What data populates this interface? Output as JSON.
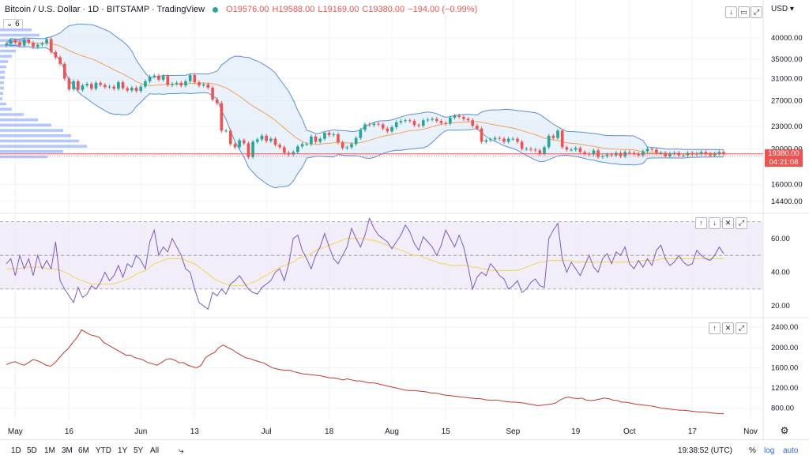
{
  "header": {
    "title": "Bitcoin / U.S. Dollar · 1D · BITSTAMP · TradingView",
    "open": "O19576.00",
    "high": "H19588.00",
    "low": "L19169.00",
    "close": "C19380.00",
    "change": "−194.00 (−0.99%)",
    "indicator_count": "6",
    "currency": "USD"
  },
  "price_tag": {
    "price": "19380.00",
    "countdown": "04:21:08"
  },
  "bottom_bar": {
    "timeframes": [
      "1D",
      "5D",
      "1M",
      "3M",
      "6M",
      "YTD",
      "1Y",
      "5Y",
      "All"
    ],
    "time": "19:38:52 (UTC)",
    "percent": "%",
    "log": "log",
    "auto": "auto"
  },
  "colors": {
    "up": "#26a69a",
    "down": "#ef5350",
    "band": "#5b8fd9",
    "ma": "#f5a05a",
    "rsi": "#7e57c2",
    "rsi_ma": "#f6d24e",
    "obv": "#c0392b",
    "volume_profile": "#2962ff"
  },
  "chart_data": [
    {
      "type": "candlestick",
      "title": "Bitcoin / U.S. Dollar · 1D · BITSTAMP",
      "x_ticks": [
        "May",
        "16",
        "Jun",
        "13",
        "Jul",
        "18",
        "Aug",
        "15",
        "Sep",
        "19",
        "Oct",
        "17",
        "Nov"
      ],
      "y_ticks": [
        40000,
        35000,
        31000,
        27000,
        23000,
        20000,
        16000,
        14400
      ],
      "y_scale": "log",
      "ylim": [
        13500,
        45000
      ],
      "close_series": [
        38500,
        39400,
        38900,
        38100,
        39600,
        38800,
        37800,
        38300,
        38600,
        39700,
        36600,
        35400,
        34000,
        31000,
        29000,
        30500,
        28900,
        29700,
        30000,
        29100,
        30200,
        29800,
        29400,
        29500,
        29100,
        30300,
        29200,
        28800,
        29300,
        28700,
        29500,
        30500,
        31400,
        31600,
        30800,
        31500,
        29800,
        30000,
        30200,
        29700,
        30500,
        31700,
        30300,
        29700,
        29900,
        29300,
        27200,
        26600,
        22400,
        22400,
        20600,
        20200,
        21100,
        20700,
        19000,
        20900,
        21200,
        21700,
        21000,
        21300,
        20500,
        20200,
        19500,
        19300,
        19600,
        20300,
        20600,
        20600,
        21600,
        20900,
        21300,
        22100,
        21800,
        21900,
        20800,
        20100,
        20200,
        20600,
        21400,
        22500,
        23300,
        23200,
        23400,
        23300,
        22700,
        22300,
        22900,
        23600,
        23800,
        23900,
        23800,
        23200,
        23100,
        23900,
        24000,
        24100,
        23800,
        23500,
        23400,
        24300,
        24600,
        24400,
        24100,
        23900,
        23100,
        22700,
        20900,
        21100,
        21200,
        21400,
        21300,
        20900,
        21300,
        21300,
        20900,
        20000,
        20000,
        19900,
        19800,
        19400,
        20200,
        21700,
        21400,
        22400,
        20200,
        19900,
        19900,
        20100,
        19600,
        19400,
        19300,
        19800,
        19000,
        19100,
        19300,
        19200,
        19500,
        19100,
        19600,
        19500,
        19400,
        19200,
        19700,
        20000,
        19900,
        19500,
        19500,
        19100,
        19400,
        19500,
        19200,
        19200,
        19500,
        19300,
        19400,
        19600,
        19400,
        19200,
        19400,
        19600,
        19380
      ],
      "ohlc_last": {
        "open": 19576,
        "high": 19588,
        "low": 19169,
        "close": 19380,
        "change": -194.0,
        "change_pct": -0.99
      },
      "last_price": 19380.0
    },
    {
      "type": "line",
      "name": "RSI",
      "y_ticks": [
        60.0,
        40.0,
        20.0
      ],
      "ylim": [
        14,
        74
      ],
      "band": [
        30,
        70
      ],
      "x": "shared",
      "values": [
        45,
        48,
        38,
        50,
        42,
        48,
        38,
        50,
        42,
        47,
        42,
        58,
        35,
        30,
        26,
        22,
        31,
        25,
        27,
        32,
        30,
        34,
        40,
        35,
        38,
        44,
        37,
        45,
        43,
        50,
        47,
        42,
        58,
        65,
        50,
        55,
        52,
        60,
        55,
        50,
        42,
        40,
        30,
        22,
        20,
        18,
        28,
        26,
        30,
        27,
        33,
        35,
        38,
        34,
        30,
        28,
        27,
        31,
        33,
        35,
        40,
        42,
        35,
        45,
        60,
        62,
        53,
        48,
        42,
        50,
        55,
        63,
        55,
        48,
        45,
        50,
        55,
        66,
        60,
        55,
        62,
        72,
        66,
        62,
        60,
        58,
        54,
        58,
        62,
        68,
        64,
        57,
        53,
        61,
        58,
        55,
        50,
        56,
        65,
        60,
        55,
        62,
        55,
        43,
        30,
        37,
        40,
        38,
        45,
        42,
        38,
        36,
        30,
        32,
        35,
        28,
        30,
        34,
        36,
        32,
        31,
        60,
        65,
        69,
        48,
        40,
        46,
        42,
        38,
        44,
        50,
        43,
        40,
        48,
        51,
        45,
        52,
        50,
        55,
        45,
        42,
        47,
        43,
        48,
        44,
        53,
        56,
        48,
        44,
        46,
        50,
        46,
        44,
        45,
        53,
        50,
        48,
        47,
        50,
        55,
        51
      ],
      "ma_values": [
        42,
        42,
        42,
        42,
        43,
        43,
        43,
        43,
        43,
        42,
        42,
        42,
        41,
        40,
        39,
        37,
        36,
        35,
        34,
        33,
        33,
        33,
        33,
        33,
        33,
        34,
        35,
        36,
        37,
        39,
        40,
        41,
        43,
        45,
        46,
        47,
        48,
        48,
        48,
        48,
        47,
        46,
        45,
        43,
        41,
        39,
        37,
        35,
        34,
        33,
        32,
        32,
        32,
        32,
        33,
        34,
        35,
        37,
        38,
        40,
        41,
        43,
        44,
        45,
        46,
        48,
        49,
        50,
        51,
        53,
        54,
        55,
        56,
        57,
        58,
        59,
        60,
        60,
        60,
        60,
        60,
        59,
        59,
        58,
        57,
        56,
        55,
        54,
        53,
        52,
        51,
        50,
        50,
        49,
        48,
        47,
        46,
        45,
        45,
        44,
        44,
        44,
        44,
        44,
        43,
        43,
        42,
        42,
        41,
        41,
        41,
        41,
        41,
        41,
        41,
        42,
        43,
        44,
        45,
        46,
        46,
        47,
        47,
        47,
        47,
        47,
        47,
        46,
        46,
        46,
        46,
        46,
        46,
        46,
        46,
        46,
        46,
        46,
        46,
        46,
        46,
        46,
        47,
        47,
        47,
        47,
        48,
        48,
        48,
        48,
        48,
        48,
        48,
        48,
        48,
        48,
        48,
        48,
        48,
        48,
        48
      ]
    },
    {
      "type": "line",
      "name": "OBV",
      "y_ticks": [
        2400.0,
        2000.0,
        1600.0,
        1200.0,
        800.0
      ],
      "ylim": [
        560,
        2560
      ],
      "x": "shared",
      "values": [
        1660,
        1700,
        1720,
        1680,
        1650,
        1700,
        1760,
        1740,
        1700,
        1650,
        1630,
        1700,
        1800,
        1900,
        1980,
        2100,
        2200,
        2350,
        2300,
        2250,
        2230,
        2200,
        2100,
        2050,
        2000,
        1950,
        1900,
        1850,
        1850,
        1800,
        1780,
        1750,
        1700,
        1680,
        1650,
        1700,
        1760,
        1780,
        1750,
        1700,
        1700,
        1650,
        1620,
        1600,
        1650,
        1800,
        1860,
        1900,
        2000,
        2050,
        2000,
        1960,
        1900,
        1850,
        1800,
        1780,
        1750,
        1720,
        1700,
        1650,
        1600,
        1580,
        1560,
        1550,
        1550,
        1520,
        1500,
        1480,
        1470,
        1460,
        1450,
        1440,
        1420,
        1400,
        1400,
        1380,
        1360,
        1380,
        1360,
        1340,
        1340,
        1320,
        1300,
        1300,
        1280,
        1260,
        1240,
        1220,
        1200,
        1180,
        1160,
        1150,
        1150,
        1140,
        1130,
        1120,
        1100,
        1100,
        1080,
        1060,
        1050,
        1040,
        1030,
        1020,
        1010,
        1000,
        990,
        990,
        970,
        960,
        960,
        960,
        940,
        930,
        920,
        920,
        910,
        900,
        880,
        870,
        850,
        860,
        870,
        880,
        900,
        960,
        1000,
        1020,
        1000,
        990,
        1000,
        960,
        950,
        960,
        980,
        1000,
        990,
        960,
        950,
        920,
        920,
        900,
        880,
        870,
        860,
        850,
        840,
        820,
        800,
        790,
        780,
        770,
        760,
        760,
        750,
        740,
        730,
        720,
        720,
        710,
        700,
        690,
        690
      ]
    }
  ]
}
